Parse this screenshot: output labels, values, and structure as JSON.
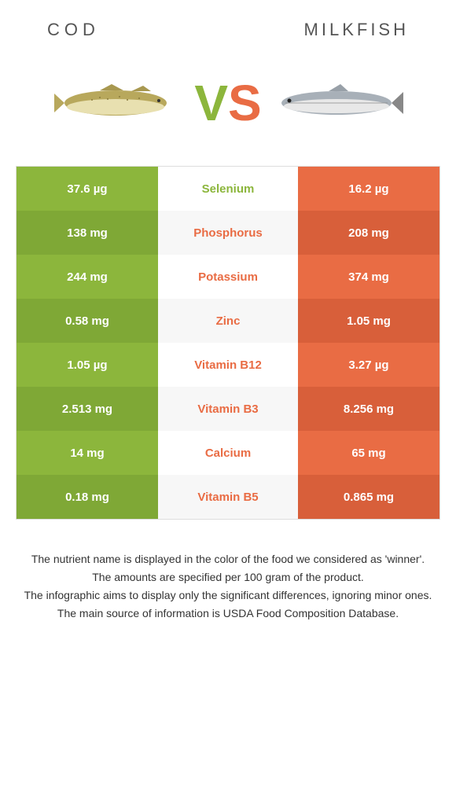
{
  "colors": {
    "green": "#8cb63c",
    "orange": "#e96c44",
    "green_dark": "#7fa836",
    "orange_dark": "#d85f3a"
  },
  "header": {
    "left": "COD",
    "right": "MILKFISH"
  },
  "vs": {
    "v": "V",
    "s": "S"
  },
  "fish": {
    "left_body": "#b8a85c",
    "left_belly": "#e8e0b0",
    "right_body": "#a8b0b8",
    "right_belly": "#e8e8e8"
  },
  "rows": [
    {
      "left": "37.6 µg",
      "name": "Selenium",
      "right": "16.2 µg",
      "winner": "left"
    },
    {
      "left": "138 mg",
      "name": "Phosphorus",
      "right": "208 mg",
      "winner": "right"
    },
    {
      "left": "244 mg",
      "name": "Potassium",
      "right": "374 mg",
      "winner": "right"
    },
    {
      "left": "0.58 mg",
      "name": "Zinc",
      "right": "1.05 mg",
      "winner": "right"
    },
    {
      "left": "1.05 µg",
      "name": "Vitamin B12",
      "right": "3.27 µg",
      "winner": "right"
    },
    {
      "left": "2.513 mg",
      "name": "Vitamin B3",
      "right": "8.256 mg",
      "winner": "right"
    },
    {
      "left": "14 mg",
      "name": "Calcium",
      "right": "65 mg",
      "winner": "right"
    },
    {
      "left": "0.18 mg",
      "name": "Vitamin B5",
      "right": "0.865 mg",
      "winner": "right"
    }
  ],
  "footer": {
    "l1": "The nutrient name is displayed in the color of the food we considered as 'winner'.",
    "l2": "The amounts are specified per 100 gram of the product.",
    "l3": "The infographic aims to display only the significant differences, ignoring minor ones.",
    "l4": "The main source of information is USDA Food Composition Database."
  }
}
